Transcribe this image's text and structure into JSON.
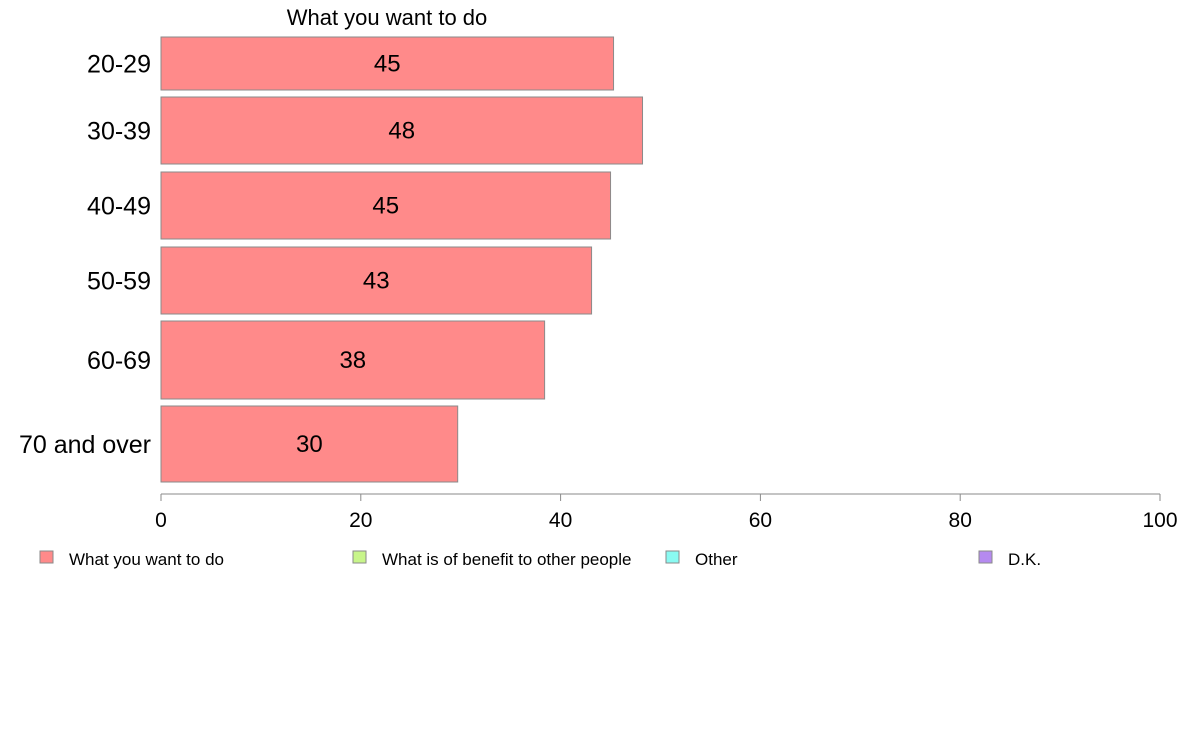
{
  "chart_data": {
    "type": "bar",
    "orientation": "horizontal",
    "title": "What you want to do",
    "categories": [
      "20-29",
      "30-39",
      "40-49",
      "50-59",
      "60-69",
      "70 and over"
    ],
    "series": [
      {
        "name": "What you want to do",
        "color": "#ff8a8a",
        "values": [
          45.3,
          48.2,
          45.0,
          43.1,
          38.4,
          29.7
        ],
        "labels": [
          "45",
          "48",
          "45",
          "43",
          "38",
          "30"
        ]
      }
    ],
    "xlim": [
      0,
      100
    ],
    "xticks": [
      0,
      20,
      40,
      60,
      80,
      100
    ],
    "xtick_labels": [
      "0",
      "20",
      "40",
      "60",
      "80",
      "100"
    ],
    "grid": false,
    "legend": {
      "position": "bottom",
      "items": [
        {
          "label": "What you want to do",
          "color": "#ff8a8a"
        },
        {
          "label": "What is of benefit to other people",
          "color": "#c8f58a"
        },
        {
          "label": "Other",
          "color": "#8afaf2"
        },
        {
          "label": "D.K.",
          "color": "#b58af0"
        }
      ]
    }
  }
}
